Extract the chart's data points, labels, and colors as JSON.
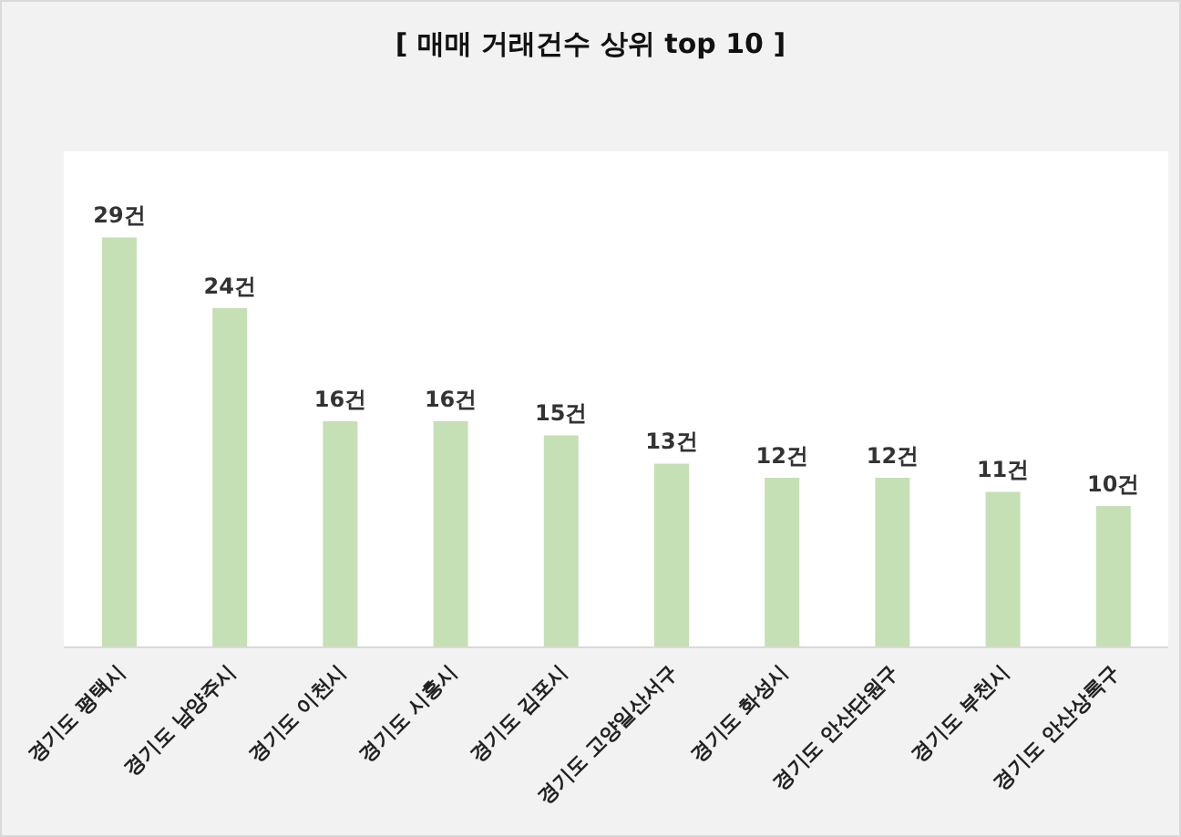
{
  "chart_data": {
    "type": "bar",
    "title": "[ 매매 거래건수 상위 top 10 ]",
    "categories": [
      "경기도 평택시",
      "경기도 남양주시",
      "경기도 이천시",
      "경기도 시흥시",
      "경기도 김포시",
      "경기도 고양일산서구",
      "경기도 화성시",
      "경기도 안산단원구",
      "경기도 부천시",
      "경기도 안산상록구"
    ],
    "values": [
      29,
      24,
      16,
      16,
      15,
      13,
      12,
      12,
      11,
      10
    ],
    "value_labels": [
      "29건",
      "24건",
      "16건",
      "16건",
      "15건",
      "13건",
      "12건",
      "12건",
      "11건",
      "10건"
    ],
    "color": "#c5e0b4"
  }
}
